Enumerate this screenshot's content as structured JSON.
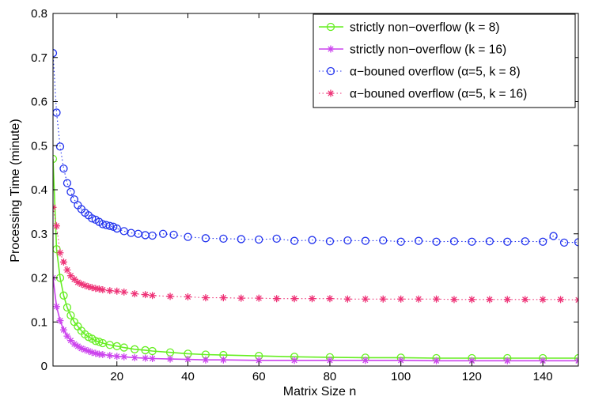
{
  "chart_data": {
    "type": "line",
    "title": "",
    "xlabel": "Matrix Size n",
    "ylabel": "Processing Time (minute)",
    "xlim": [
      2,
      150
    ],
    "ylim": [
      0,
      0.8
    ],
    "xticks": [
      20,
      40,
      60,
      80,
      100,
      120,
      140
    ],
    "yticks": [
      0,
      0.1,
      0.2,
      0.3,
      0.4,
      0.5,
      0.6,
      0.7,
      0.8
    ],
    "grid": false,
    "legend_position": "top-right",
    "series": [
      {
        "name": "strictly non−overflow (k = 8)",
        "color": "#66ee22",
        "line_style": "solid",
        "marker": "circle",
        "x": [
          2,
          3,
          4,
          5,
          6,
          7,
          8,
          9,
          10,
          11,
          12,
          13,
          14,
          15,
          16,
          18,
          20,
          22,
          25,
          28,
          30,
          35,
          40,
          45,
          50,
          60,
          70,
          80,
          90,
          100,
          110,
          120,
          130,
          140,
          150
        ],
        "y": [
          0.47,
          0.265,
          0.2,
          0.16,
          0.133,
          0.115,
          0.1,
          0.09,
          0.08,
          0.072,
          0.066,
          0.062,
          0.057,
          0.055,
          0.052,
          0.048,
          0.045,
          0.042,
          0.038,
          0.036,
          0.034,
          0.031,
          0.028,
          0.026,
          0.025,
          0.023,
          0.021,
          0.02,
          0.019,
          0.019,
          0.018,
          0.018,
          0.018,
          0.018,
          0.018
        ]
      },
      {
        "name": "strictly non−overflow (k = 16)",
        "color": "#cc44ee",
        "line_style": "solid",
        "marker": "asterisk",
        "x": [
          2,
          3,
          4,
          5,
          6,
          7,
          8,
          9,
          10,
          11,
          12,
          13,
          14,
          15,
          16,
          18,
          20,
          22,
          25,
          28,
          30,
          35,
          40,
          45,
          50,
          60,
          70,
          80,
          90,
          100,
          110,
          120,
          130,
          140,
          150
        ],
        "y": [
          0.2,
          0.135,
          0.103,
          0.082,
          0.068,
          0.058,
          0.05,
          0.045,
          0.04,
          0.037,
          0.034,
          0.031,
          0.029,
          0.027,
          0.026,
          0.024,
          0.022,
          0.021,
          0.019,
          0.018,
          0.017,
          0.016,
          0.015,
          0.014,
          0.014,
          0.013,
          0.013,
          0.013,
          0.013,
          0.013,
          0.012,
          0.012,
          0.012,
          0.012,
          0.012
        ]
      },
      {
        "name": "α−bouned overflow (α=5, k = 8)",
        "color": "#2233ee",
        "line_style": "dotted",
        "marker": "circle",
        "x": [
          2,
          3,
          4,
          5,
          6,
          7,
          8,
          9,
          10,
          11,
          12,
          13,
          14,
          15,
          16,
          17,
          18,
          19,
          20,
          22,
          24,
          26,
          28,
          30,
          33,
          36,
          40,
          45,
          50,
          55,
          60,
          65,
          70,
          75,
          80,
          85,
          90,
          95,
          100,
          105,
          110,
          115,
          120,
          125,
          130,
          135,
          140,
          143,
          146,
          150
        ],
        "y": [
          0.71,
          0.575,
          0.498,
          0.448,
          0.415,
          0.395,
          0.378,
          0.365,
          0.356,
          0.348,
          0.342,
          0.335,
          0.332,
          0.327,
          0.322,
          0.32,
          0.318,
          0.316,
          0.312,
          0.306,
          0.302,
          0.3,
          0.297,
          0.296,
          0.3,
          0.298,
          0.293,
          0.29,
          0.289,
          0.288,
          0.287,
          0.289,
          0.284,
          0.286,
          0.283,
          0.285,
          0.284,
          0.285,
          0.282,
          0.284,
          0.282,
          0.283,
          0.282,
          0.283,
          0.282,
          0.283,
          0.282,
          0.295,
          0.28,
          0.281
        ]
      },
      {
        "name": "α−bouned overflow (α=5, k = 16)",
        "color": "#ee3377",
        "line_style": "dotted",
        "marker": "asterisk",
        "x": [
          2,
          3,
          4,
          5,
          6,
          7,
          8,
          9,
          10,
          11,
          12,
          13,
          14,
          15,
          16,
          18,
          20,
          22,
          25,
          28,
          30,
          35,
          40,
          45,
          50,
          55,
          60,
          65,
          70,
          75,
          80,
          85,
          90,
          95,
          100,
          105,
          110,
          115,
          120,
          125,
          130,
          135,
          140,
          145,
          150
        ],
        "y": [
          0.36,
          0.318,
          0.257,
          0.236,
          0.218,
          0.205,
          0.197,
          0.19,
          0.186,
          0.183,
          0.18,
          0.178,
          0.176,
          0.175,
          0.173,
          0.171,
          0.17,
          0.168,
          0.164,
          0.162,
          0.16,
          0.158,
          0.157,
          0.155,
          0.155,
          0.154,
          0.154,
          0.153,
          0.153,
          0.153,
          0.153,
          0.152,
          0.152,
          0.152,
          0.152,
          0.152,
          0.152,
          0.151,
          0.151,
          0.151,
          0.151,
          0.151,
          0.151,
          0.151,
          0.15
        ]
      }
    ]
  }
}
